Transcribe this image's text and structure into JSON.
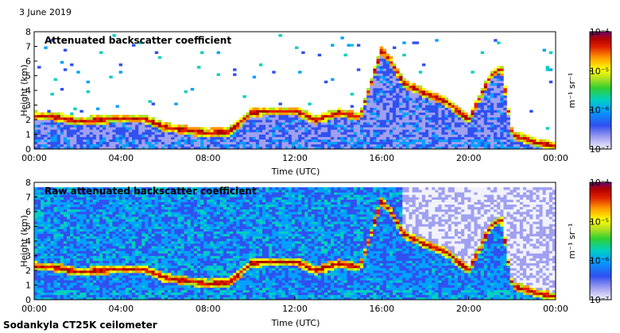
{
  "page": {
    "date": "3 June 2019",
    "footer": "Sodankyla CT25K ceilometer"
  },
  "colors": {
    "colormap": [
      "#f2f2ff",
      "#a0a0f0",
      "#3050f0",
      "#00a0ff",
      "#00d0c0",
      "#30d030",
      "#b0e020",
      "#ffff00",
      "#ff9900",
      "#e02000",
      "#b00000",
      "#700070"
    ]
  },
  "chart_data": [
    {
      "type": "heatmap",
      "title": "Attenuated backscatter coefficient",
      "xlabel": "Time (UTC)",
      "ylabel": "Height (km)",
      "x_ticks": [
        "00:00",
        "04:00",
        "08:00",
        "12:00",
        "16:00",
        "20:00",
        "00:00"
      ],
      "x_range_hours": [
        0,
        24
      ],
      "y_ticks": [
        "0",
        "1",
        "2",
        "3",
        "4",
        "5",
        "6",
        "7",
        "8"
      ],
      "ylim": [
        0,
        8
      ],
      "colorbar": {
        "label": "m⁻¹ sr⁻¹",
        "ticks": [
          "10⁻⁷",
          "10⁻⁶",
          "10⁻⁵",
          "10⁻⁴"
        ],
        "range": [
          1e-07,
          0.0001
        ],
        "scale": "log"
      },
      "cloud_layer_height_km": [
        [
          0,
          2.3
        ],
        [
          1,
          2.2
        ],
        [
          2,
          1.9
        ],
        [
          3,
          2.0
        ],
        [
          4,
          2.1
        ],
        [
          5,
          2.1
        ],
        [
          6,
          1.5
        ],
        [
          7,
          1.3
        ],
        [
          8,
          1.1
        ],
        [
          9,
          1.2
        ],
        [
          10,
          2.5
        ],
        [
          11,
          2.6
        ],
        [
          12,
          2.6
        ],
        [
          13,
          2.0
        ],
        [
          14,
          2.5
        ],
        [
          15,
          2.2
        ],
        [
          16,
          6.8
        ],
        [
          16.5,
          5.8
        ],
        [
          17,
          4.5
        ],
        [
          18,
          3.8
        ],
        [
          19,
          3.2
        ],
        [
          20,
          2.0
        ],
        [
          21,
          5.0
        ],
        [
          21.5,
          5.6
        ],
        [
          22,
          1.0
        ],
        [
          23,
          0.5
        ],
        [
          24,
          0.2
        ]
      ]
    },
    {
      "type": "heatmap",
      "title": "Raw attenuated backscatter coefficient",
      "xlabel": "Time (UTC)",
      "ylabel": "Height (km)",
      "x_ticks": [
        "00:00",
        "04:00",
        "08:00",
        "12:00",
        "16:00",
        "20:00",
        "00:00"
      ],
      "x_range_hours": [
        0,
        24
      ],
      "y_ticks": [
        "0",
        "1",
        "2",
        "3",
        "4",
        "5",
        "6",
        "7",
        "8"
      ],
      "ylim": [
        0,
        8
      ],
      "colorbar": {
        "label": "m⁻¹ sr⁻¹",
        "ticks": [
          "10⁻⁷",
          "10⁻⁶",
          "10⁻⁵",
          "10⁻⁴"
        ],
        "range": [
          1e-07,
          0.0001
        ],
        "scale": "log"
      },
      "cloud_layer_height_km": [
        [
          0,
          2.3
        ],
        [
          1,
          2.2
        ],
        [
          2,
          1.9
        ],
        [
          3,
          2.0
        ],
        [
          4,
          2.1
        ],
        [
          5,
          2.1
        ],
        [
          6,
          1.5
        ],
        [
          7,
          1.3
        ],
        [
          8,
          1.1
        ],
        [
          9,
          1.2
        ],
        [
          10,
          2.5
        ],
        [
          11,
          2.6
        ],
        [
          12,
          2.6
        ],
        [
          13,
          2.0
        ],
        [
          14,
          2.5
        ],
        [
          15,
          2.2
        ],
        [
          16,
          6.8
        ],
        [
          16.5,
          5.8
        ],
        [
          17,
          4.5
        ],
        [
          18,
          3.8
        ],
        [
          19,
          3.2
        ],
        [
          20,
          2.0
        ],
        [
          21,
          5.0
        ],
        [
          21.5,
          5.6
        ],
        [
          22,
          1.0
        ],
        [
          23,
          0.5
        ],
        [
          24,
          0.2
        ]
      ]
    }
  ]
}
